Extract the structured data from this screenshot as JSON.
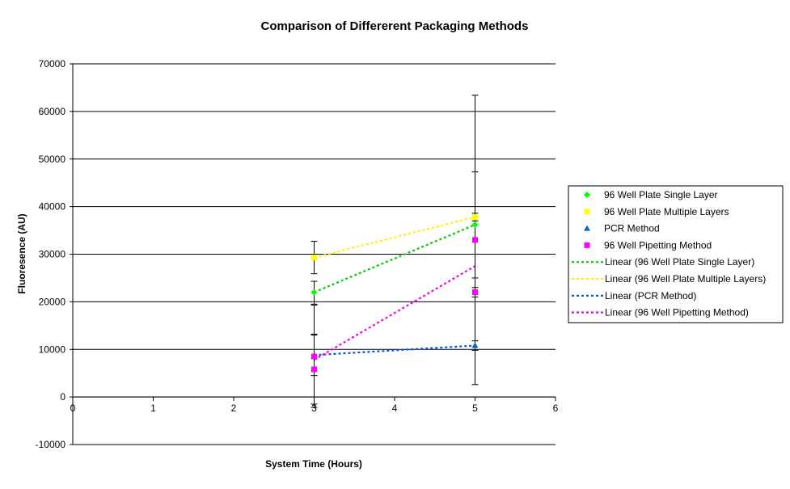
{
  "chart_data": {
    "type": "scatter",
    "title": "Comparison of Differerent Packaging Methods",
    "xlabel": "System Time (Hours)",
    "ylabel": "Fluoresence (AU)",
    "xlim": [
      0,
      6
    ],
    "ylim": [
      -10000,
      70000
    ],
    "x_ticks": [
      0,
      1,
      2,
      3,
      4,
      5,
      6
    ],
    "y_ticks": [
      -10000,
      0,
      10000,
      20000,
      30000,
      40000,
      50000,
      60000,
      70000
    ],
    "grid": "horizontal major gridlines",
    "legend_position": "right",
    "series": [
      {
        "name": "96 Well Plate Single Layer",
        "marker": "diamond",
        "color": "#00ff00",
        "points": [
          {
            "x": 3,
            "y": 22000,
            "err_low": 19500,
            "err_high": 24300
          },
          {
            "x": 5,
            "y": 36200,
            "err_low": 25000,
            "err_high": 47300
          }
        ]
      },
      {
        "name": "96 Well Plate Multiple Layers",
        "marker": "square",
        "color": "#ffff00",
        "points": [
          {
            "x": 3,
            "y": 29300,
            "err_low": 25900,
            "err_high": 32700
          },
          {
            "x": 5,
            "y": 37800,
            "err_low": 37000,
            "err_high": 38600
          }
        ]
      },
      {
        "name": "PCR Method",
        "marker": "triangle",
        "color": "#0066cc",
        "points": [
          {
            "x": 3,
            "y": 8500,
            "err_low": 4500,
            "err_high": 13200
          },
          {
            "x": 5,
            "y": 10800,
            "err_low": 9800,
            "err_high": 11800
          }
        ]
      },
      {
        "name": "96 Well Pipetting Method",
        "marker": "square",
        "color": "#ff00ff",
        "points": [
          {
            "x": 3,
            "y": 8500,
            "err_low": -1500,
            "err_high": 19300
          },
          {
            "x": 3,
            "y": 5800,
            "err_low": -2200,
            "err_high": 13000
          },
          {
            "x": 5,
            "y": 33000,
            "err_low": 2600,
            "err_high": 63400
          },
          {
            "x": 5,
            "y": 22000,
            "err_low": 21000,
            "err_high": 23000
          }
        ]
      }
    ],
    "trendlines": [
      {
        "name": "Linear (96 Well Plate Single Layer)",
        "color": "#00cc00",
        "from": [
          3,
          22000
        ],
        "to": [
          5,
          36200
        ]
      },
      {
        "name": "Linear (96 Well Plate Multiple Layers)",
        "color": "#ffee00",
        "from": [
          3,
          29300
        ],
        "to": [
          5,
          37800
        ]
      },
      {
        "name": "Linear (PCR Method)",
        "color": "#0055ee",
        "from": [
          3,
          8800
        ],
        "to": [
          5,
          10800
        ]
      },
      {
        "name": "Linear (96 Well Pipetting Method)",
        "color": "#ee00ee",
        "from": [
          3,
          7800
        ],
        "to": [
          5,
          27500
        ]
      }
    ]
  }
}
